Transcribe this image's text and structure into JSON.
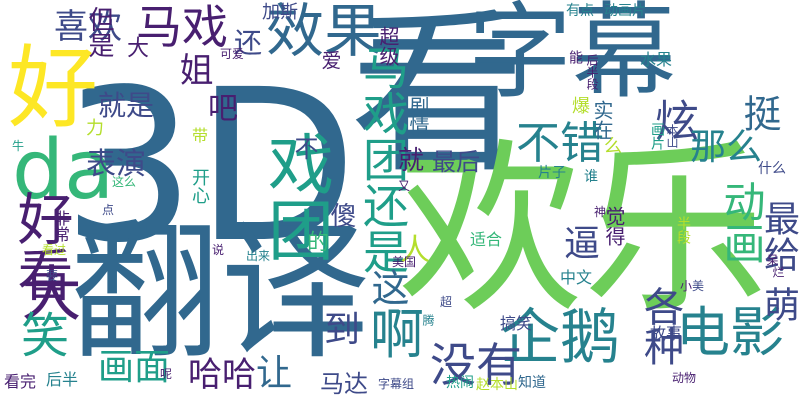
{
  "colors": {
    "purple": "#481f70",
    "deep_blue": "#3e4a89",
    "blue": "#31688e",
    "teal": "#26828e",
    "green_teal": "#1f9e89",
    "green": "#35b779",
    "light_green": "#6dcd59",
    "yellow_green": "#b4de2c",
    "yellow": "#fde725"
  },
  "words": [
    {
      "text": "3D",
      "color": "blue"
    },
    {
      "text": "字幕",
      "color": "blue"
    },
    {
      "text": "看",
      "color": "blue"
    },
    {
      "text": "欢乐",
      "color": "light_green"
    },
    {
      "text": "翻译",
      "color": "blue"
    },
    {
      "text": "好",
      "color": "yellow"
    },
    {
      "text": "da",
      "color": "green"
    },
    {
      "text": "效果",
      "color": "blue"
    },
    {
      "text": "马戏",
      "color": "purple"
    },
    {
      "text": "喜欢",
      "color": "deep_blue"
    },
    {
      "text": "电影",
      "color": "teal"
    },
    {
      "text": "企鹅",
      "color": "teal"
    },
    {
      "text": "啊",
      "color": "teal"
    },
    {
      "text": "没有",
      "color": "deep_blue"
    },
    {
      "text": "大",
      "color": "purple"
    },
    {
      "text": "笑",
      "color": "green_teal"
    },
    {
      "text": "好看",
      "color": "purple"
    },
    {
      "text": "戏团",
      "color": "green_teal"
    },
    {
      "text": "马戏团还是",
      "color": "green_teal"
    },
    {
      "text": "不错",
      "color": "teal"
    },
    {
      "text": "炫",
      "color": "deep_blue"
    },
    {
      "text": "那么",
      "color": "teal"
    },
    {
      "text": "挺",
      "color": "blue"
    },
    {
      "text": "动画",
      "color": "green"
    },
    {
      "text": "最给",
      "color": "deep_blue"
    },
    {
      "text": "萌",
      "color": "deep_blue"
    },
    {
      "text": "画面",
      "color": "green_teal"
    },
    {
      "text": "哈哈",
      "color": "purple"
    },
    {
      "text": "让",
      "color": "blue"
    },
    {
      "text": "到",
      "color": "deep_blue"
    },
    {
      "text": "逼",
      "color": "deep_blue"
    },
    {
      "text": "各种",
      "color": "deep_blue"
    },
    {
      "text": "这",
      "color": "blue"
    },
    {
      "text": "表演",
      "color": "deep_blue"
    },
    {
      "text": "就是",
      "color": "deep_blue"
    },
    {
      "text": "姐",
      "color": "purple"
    },
    {
      "text": "还",
      "color": "deep_blue"
    },
    {
      "text": "吧",
      "color": "purple"
    },
    {
      "text": "人",
      "color": "yellow_green"
    },
    {
      "text": "傻",
      "color": "deep_blue"
    },
    {
      "text": "最后",
      "color": "deep_blue"
    },
    {
      "text": "就",
      "color": "purple"
    },
    {
      "text": "不",
      "color": "deep_blue"
    },
    {
      "text": "但是",
      "color": "purple"
    },
    {
      "text": "马达",
      "color": "deep_blue"
    },
    {
      "text": "大",
      "color": "purple"
    },
    {
      "text": "的",
      "color": "green"
    },
    {
      "text": "爱",
      "color": "purple"
    },
    {
      "text": "剧情",
      "color": "blue"
    },
    {
      "text": "超级",
      "color": "purple"
    },
    {
      "text": "加斯",
      "color": "deep_blue"
    },
    {
      "text": "有点",
      "color": "teal"
    },
    {
      "text": "动画片",
      "color": "teal"
    },
    {
      "text": "能",
      "color": "purple"
    },
    {
      "text": "后半段",
      "color": "purple"
    },
    {
      "text": "水果",
      "color": "teal"
    },
    {
      "text": "实在",
      "color": "blue"
    },
    {
      "text": "么",
      "color": "yellow_green"
    },
    {
      "text": "爆",
      "color": "yellow_green"
    },
    {
      "text": "画片",
      "color": "green_teal"
    },
    {
      "text": "本山",
      "color": "deep_blue"
    },
    {
      "text": "什么",
      "color": "deep_blue"
    },
    {
      "text": "片子",
      "color": "teal"
    },
    {
      "text": "谁",
      "color": "teal"
    },
    {
      "text": "觉得",
      "color": "purple"
    },
    {
      "text": "神",
      "color": "purple"
    },
    {
      "text": "半段",
      "color": "yellow_green"
    },
    {
      "text": "适合",
      "color": "green"
    },
    {
      "text": "中文",
      "color": "teal"
    },
    {
      "text": "小",
      "color": "purple"
    },
    {
      "text": "美",
      "color": "deep_blue"
    },
    {
      "text": "呆",
      "color": "purple"
    },
    {
      "text": "烂",
      "color": "purple"
    },
    {
      "text": "故事",
      "color": "deep_blue"
    },
    {
      "text": "搞笑",
      "color": "deep_blue"
    },
    {
      "text": "动物",
      "color": "purple"
    },
    {
      "text": "赵本山",
      "color": "yellow_green"
    },
    {
      "text": "知道",
      "color": "blue"
    },
    {
      "text": "热闹",
      "color": "green_teal"
    },
    {
      "text": "字幕组",
      "color": "deep_blue"
    },
    {
      "text": "超",
      "color": "deep_blue"
    },
    {
      "text": "美国",
      "color": "purple"
    },
    {
      "text": "又",
      "color": "purple"
    },
    {
      "text": "这么",
      "color": "green"
    },
    {
      "text": "说",
      "color": "purple"
    },
    {
      "text": "出来",
      "color": "teal"
    },
    {
      "text": "要",
      "color": "deep_blue"
    },
    {
      "text": "看过",
      "color": "yellow_green"
    },
    {
      "text": "非常",
      "color": "purple"
    },
    {
      "text": "点",
      "color": "deep_blue"
    },
    {
      "text": "牛",
      "color": "green_teal"
    },
    {
      "text": "开心",
      "color": "green_teal"
    },
    {
      "text": "带",
      "color": "yellow_green"
    },
    {
      "text": "力",
      "color": "yellow_green"
    },
    {
      "text": "呢",
      "color": "purple"
    },
    {
      "text": "看完",
      "color": "purple"
    },
    {
      "text": "后半",
      "color": "teal"
    },
    {
      "text": "可爱",
      "color": "purple"
    },
    {
      "text": "腾",
      "color": "teal"
    }
  ]
}
